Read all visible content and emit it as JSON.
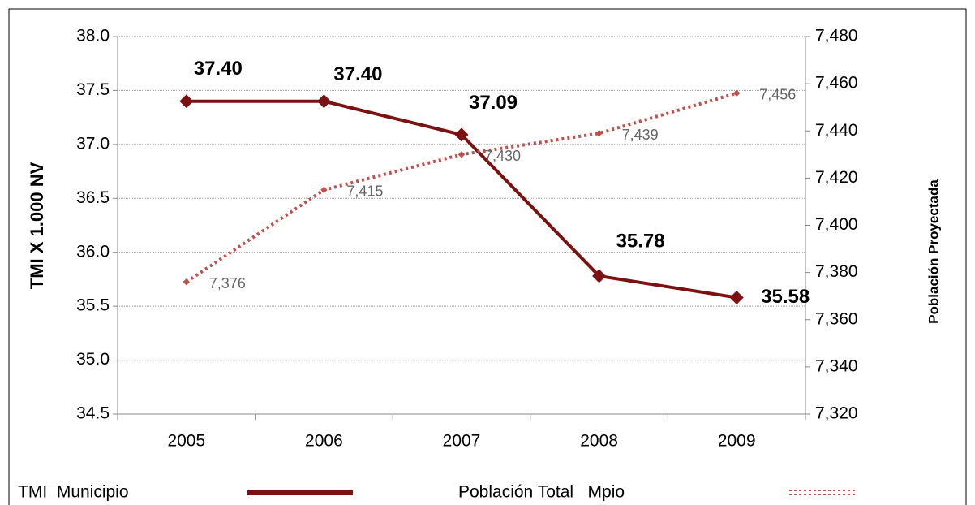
{
  "chart_data": {
    "type": "line",
    "y_label": "TMI X 1.000 NV",
    "y2_label": "Población Proyectada",
    "categories": [
      "2005",
      "2006",
      "2007",
      "2008",
      "2009"
    ],
    "series": [
      {
        "name": "TMI  Municipio",
        "color": "#7b1111",
        "values": [
          37.4,
          37.4,
          37.09,
          35.78,
          35.58
        ],
        "value_labels": [
          "37.40",
          "37.40",
          "37.09",
          "35.78",
          "35.58"
        ]
      },
      {
        "name": "Población Total   Mpio",
        "color": "#c0504d",
        "axis": "y2",
        "style": "dotted",
        "values": [
          7376,
          7415,
          7430,
          7439,
          7456
        ],
        "value_labels": [
          "7,376",
          "7,415",
          "7,430",
          "7,439",
          "7,456"
        ]
      }
    ],
    "ylim": [
      34.5,
      38.0
    ],
    "yticks": [
      {
        "value": 34.5,
        "label": "34.5"
      },
      {
        "value": 35,
        "label": "35.0"
      },
      {
        "value": 35.5,
        "label": "35.5"
      },
      {
        "value": 36,
        "label": "36.0"
      },
      {
        "value": 36.5,
        "label": "36.5"
      },
      {
        "value": 37,
        "label": "37.0"
      },
      {
        "value": 37.5,
        "label": "37.5"
      },
      {
        "value": 38,
        "label": "38.0"
      }
    ],
    "y2lim": [
      7320,
      7480
    ],
    "y2ticks": [
      {
        "value": 7320,
        "label": "7,320"
      },
      {
        "value": 7340,
        "label": "7,340"
      },
      {
        "value": 7360,
        "label": "7,360"
      },
      {
        "value": 7380,
        "label": "7,380"
      },
      {
        "value": 7400,
        "label": "7,400"
      },
      {
        "value": 7420,
        "label": "7,420"
      },
      {
        "value": 7440,
        "label": "7,440"
      },
      {
        "value": 7460,
        "label": "7,460"
      },
      {
        "value": 7480,
        "label": "7,480"
      }
    ],
    "grid": true,
    "legend": "bottom"
  }
}
